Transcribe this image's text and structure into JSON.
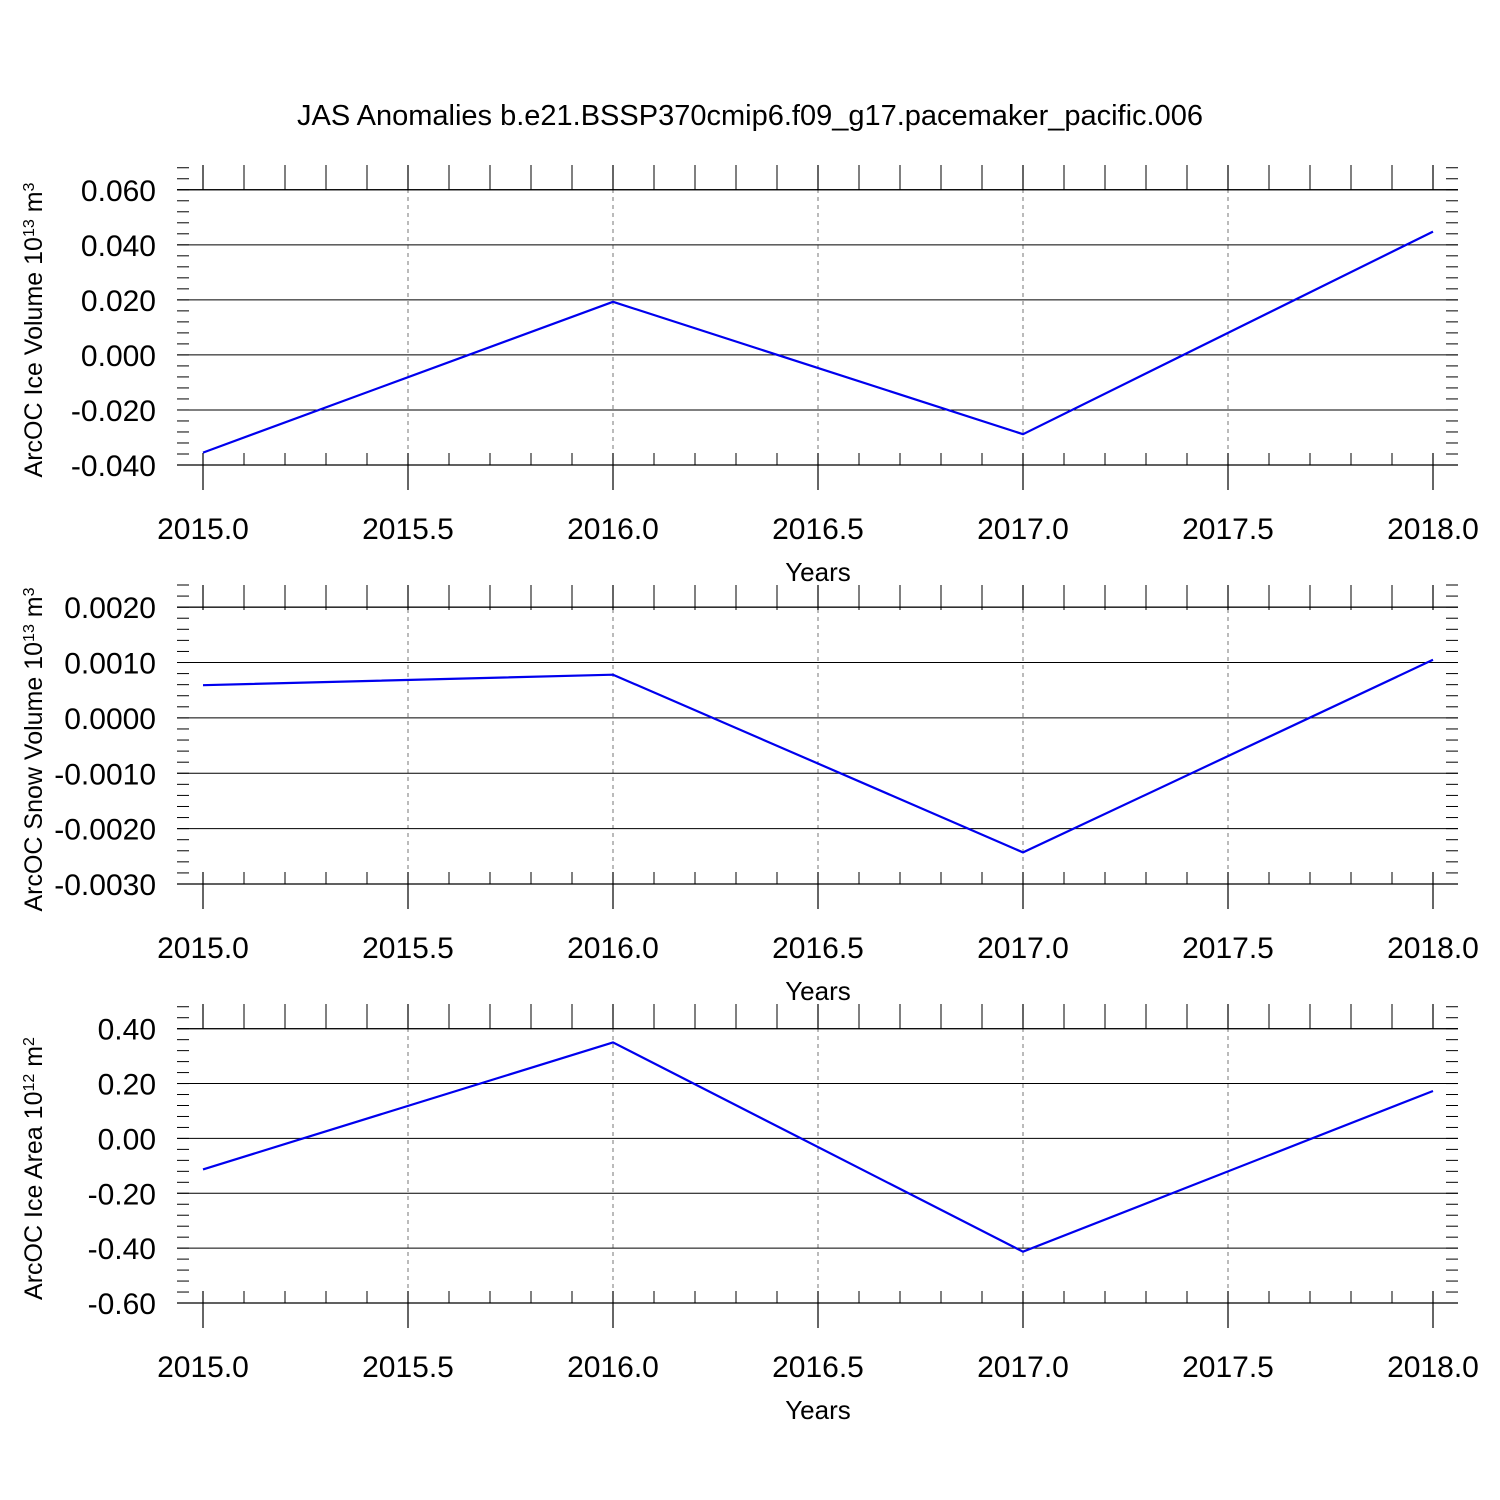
{
  "figure": {
    "title": "JAS Anomalies b.e21.BSSP370cmip6.f09_g17.pacemaker_pacific.006"
  },
  "chart_data": [
    {
      "type": "line",
      "title": "",
      "xlabel": "Years",
      "ylabel": {
        "base": "ArcOC Ice Volume 10",
        "exp": "13",
        "unit": " m",
        "unit_exp": "3"
      },
      "xlim": [
        2015.0,
        2018.0
      ],
      "ylim": [
        -0.04,
        0.069
      ],
      "x_ticks": [
        2015.0,
        2015.5,
        2016.0,
        2016.5,
        2017.0,
        2017.5,
        2018.0
      ],
      "x_tick_labels": [
        "2015.0",
        "2015.5",
        "2016.0",
        "2016.5",
        "2017.0",
        "2017.5",
        "2018.0"
      ],
      "y_ticks": [
        -0.04,
        -0.02,
        0.0,
        0.02,
        0.04,
        0.06
      ],
      "y_tick_labels": [
        "-0.040",
        "-0.020",
        "0.000",
        "0.020",
        "0.040",
        "0.060"
      ],
      "grid": "vertical dashed at x major ticks",
      "series": [
        {
          "color": "#0000ee",
          "x": [
            2015,
            2016,
            2017,
            2018
          ],
          "y": [
            -0.0355,
            0.0193,
            -0.0288,
            0.0448
          ]
        }
      ]
    },
    {
      "type": "line",
      "title": "",
      "xlabel": "Years",
      "ylabel": {
        "base": "ArcOC Snow Volume 10",
        "exp": "13",
        "unit": " m",
        "unit_exp": "3"
      },
      "xlim": [
        2015.0,
        2018.0
      ],
      "ylim": [
        -0.003,
        0.0024
      ],
      "x_ticks": [
        2015.0,
        2015.5,
        2016.0,
        2016.5,
        2017.0,
        2017.5,
        2018.0
      ],
      "x_tick_labels": [
        "2015.0",
        "2015.5",
        "2016.0",
        "2016.5",
        "2017.0",
        "2017.5",
        "2018.0"
      ],
      "y_ticks": [
        -0.003,
        -0.002,
        -0.001,
        0.0,
        0.001,
        0.002
      ],
      "y_tick_labels": [
        "-0.0030",
        "-0.0020",
        "-0.0010",
        "0.0000",
        "0.0010",
        "0.0020"
      ],
      "grid": "vertical dashed at x major ticks",
      "series": [
        {
          "color": "#0000ee",
          "x": [
            2015,
            2016,
            2017,
            2018
          ],
          "y": [
            0.00059,
            0.00078,
            -0.00243,
            0.00105
          ]
        }
      ]
    },
    {
      "type": "line",
      "title": "",
      "xlabel": "Years",
      "ylabel": {
        "base": "ArcOC Ice Area 10",
        "exp": "12",
        "unit": " m",
        "unit_exp": "2"
      },
      "xlim": [
        2015.0,
        2018.0
      ],
      "ylim": [
        -0.6,
        0.49
      ],
      "x_ticks": [
        2015.0,
        2015.5,
        2016.0,
        2016.5,
        2017.0,
        2017.5,
        2018.0
      ],
      "x_tick_labels": [
        "2015.0",
        "2015.5",
        "2016.0",
        "2016.5",
        "2017.0",
        "2017.5",
        "2018.0"
      ],
      "y_ticks": [
        -0.6,
        -0.4,
        -0.2,
        0.0,
        0.2,
        0.4
      ],
      "y_tick_labels": [
        "-0.60",
        "-0.40",
        "-0.20",
        "0.00",
        "0.20",
        "0.40"
      ],
      "grid": "vertical dashed at x major ticks",
      "series": [
        {
          "color": "#0000ee",
          "x": [
            2015,
            2016,
            2017,
            2018
          ],
          "y": [
            -0.113,
            0.35,
            -0.413,
            0.173
          ]
        }
      ]
    }
  ]
}
